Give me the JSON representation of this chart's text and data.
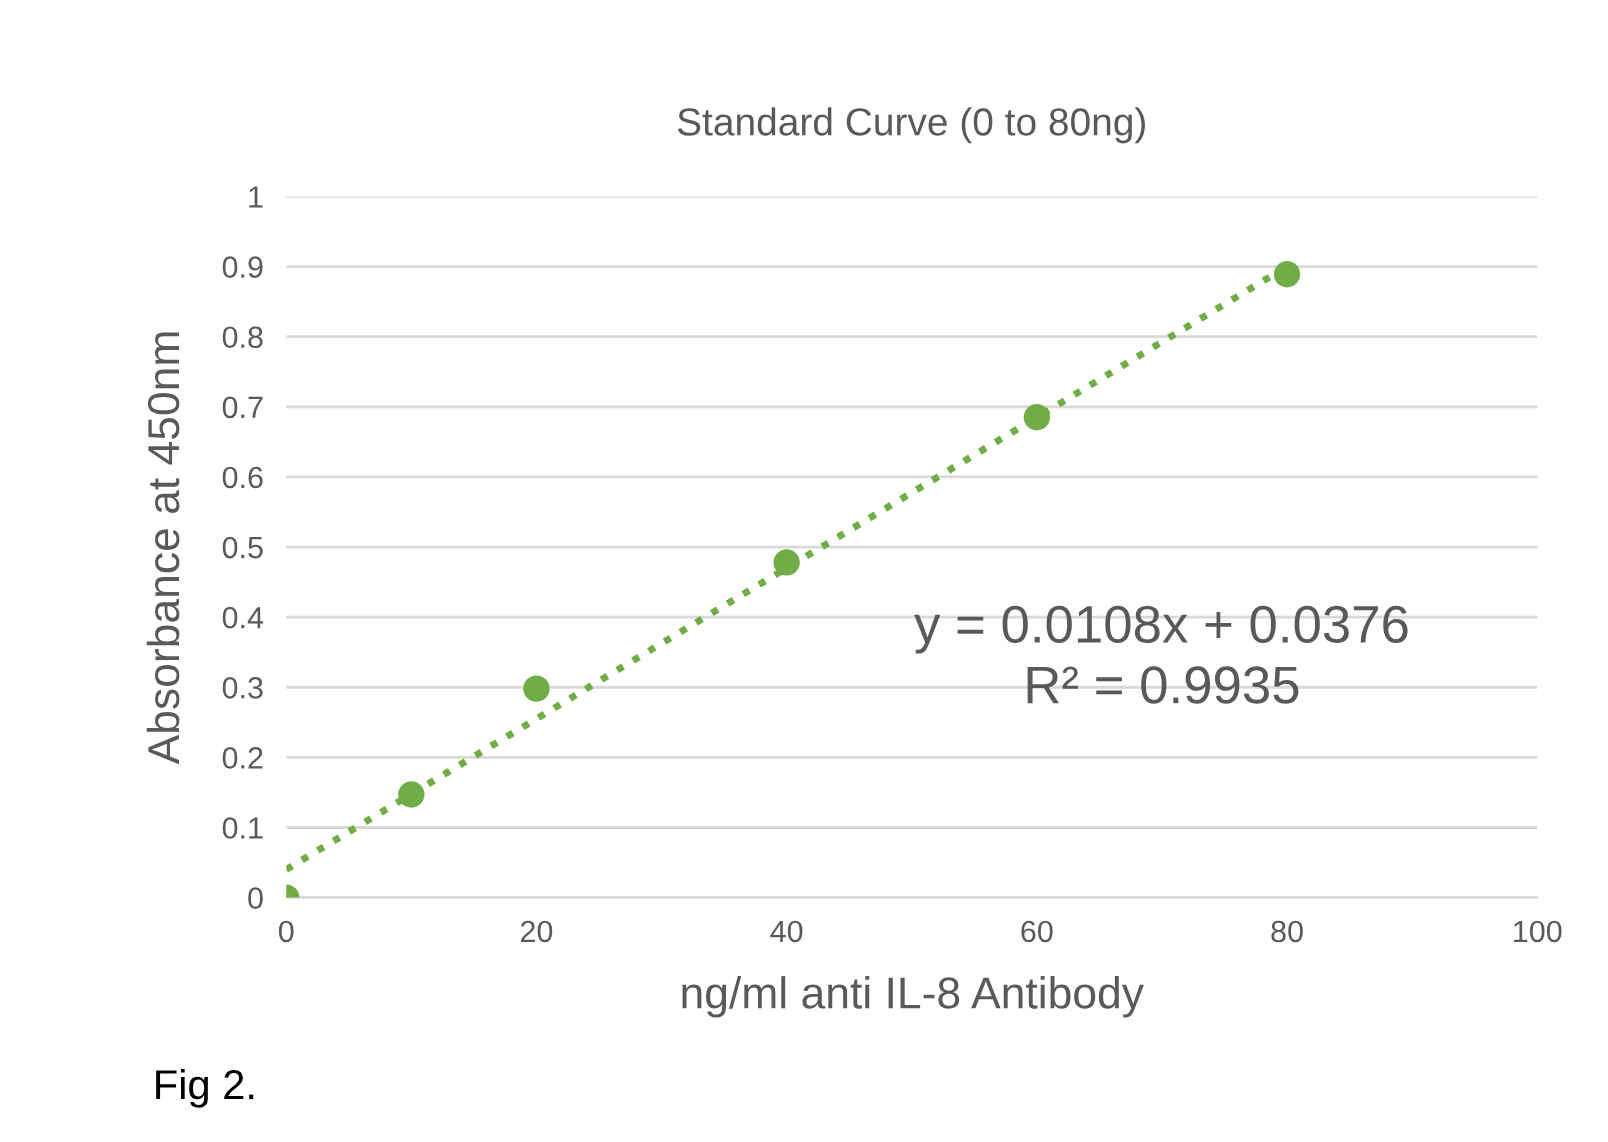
{
  "chart_data": {
    "type": "scatter",
    "title": "Standard Curve (0 to 80ng)",
    "xlabel": "ng/ml anti IL-8 Antibody",
    "ylabel": "Absorbance at 450nm",
    "x": [
      0,
      10,
      20,
      40,
      60,
      80
    ],
    "series": [
      {
        "color": "#70ad47",
        "marker": "circle",
        "values": [
          0,
          0.147,
          0.298,
          0.478,
          0.685,
          0.889
        ]
      },
      {
        "type": "line",
        "color": "#70ad47",
        "marker": "none",
        "line_style": "dotted",
        "x": [
          0,
          80
        ],
        "values": [
          0.04,
          0.9
        ]
      }
    ],
    "xlim": [
      0,
      100
    ],
    "xticks": [
      0,
      20,
      40,
      60,
      80,
      100
    ],
    "ylim": [
      0,
      1
    ],
    "yticks": [
      0,
      0.1,
      0.2,
      0.3,
      0.4,
      0.5,
      0.6,
      0.7,
      0.8,
      0.9,
      1
    ],
    "grid": "y",
    "legend": false,
    "annotations": [
      "y = 0.0108x + 0.0376\nR² = 0.9935",
      "Fig 2."
    ]
  }
}
